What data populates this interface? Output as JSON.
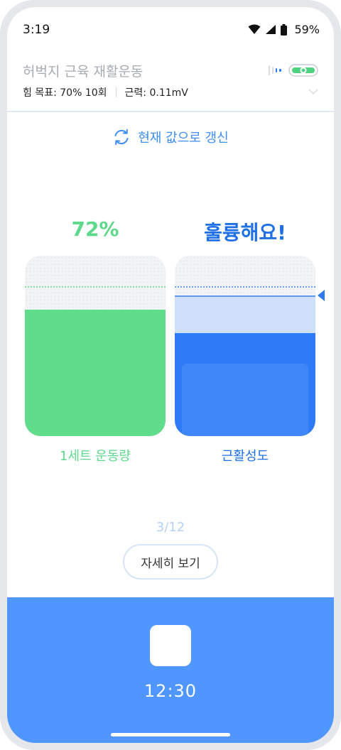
{
  "status_bar": {
    "time": "3:19",
    "battery": "59%",
    "icons": [
      "wifi-icon",
      "signal-icon",
      "battery-icon"
    ]
  },
  "header": {
    "title": "허벅지 근육 재활운동",
    "goal": "힘 목표: 70% 10회",
    "strength": "근력: 0.11mV",
    "icons": [
      "sensor-signal-icon",
      "sensor-device-icon",
      "chevron-down-icon"
    ]
  },
  "refresh": {
    "label": "현재 값으로 갱신",
    "icon": "refresh-icon"
  },
  "left_gauge": {
    "value_label": "72%",
    "caption": "1세트 운동량",
    "fill_fraction": 0.7,
    "target_fraction": 0.83,
    "color": "#5fdd8a"
  },
  "right_gauge": {
    "message": "훌륭해요!",
    "caption": "근활성도",
    "fill_fraction": 0.57,
    "target_fraction": 0.83,
    "light_band_top_fraction": 0.78,
    "inner_band_fraction": 0.4,
    "color": "#2f7bf7"
  },
  "pagination": {
    "text": "3/12"
  },
  "detail_button": {
    "label": "자세히 보기"
  },
  "bottom": {
    "timer": "12:30",
    "stop_icon": "stop-icon",
    "accent": "#4f97ff"
  }
}
